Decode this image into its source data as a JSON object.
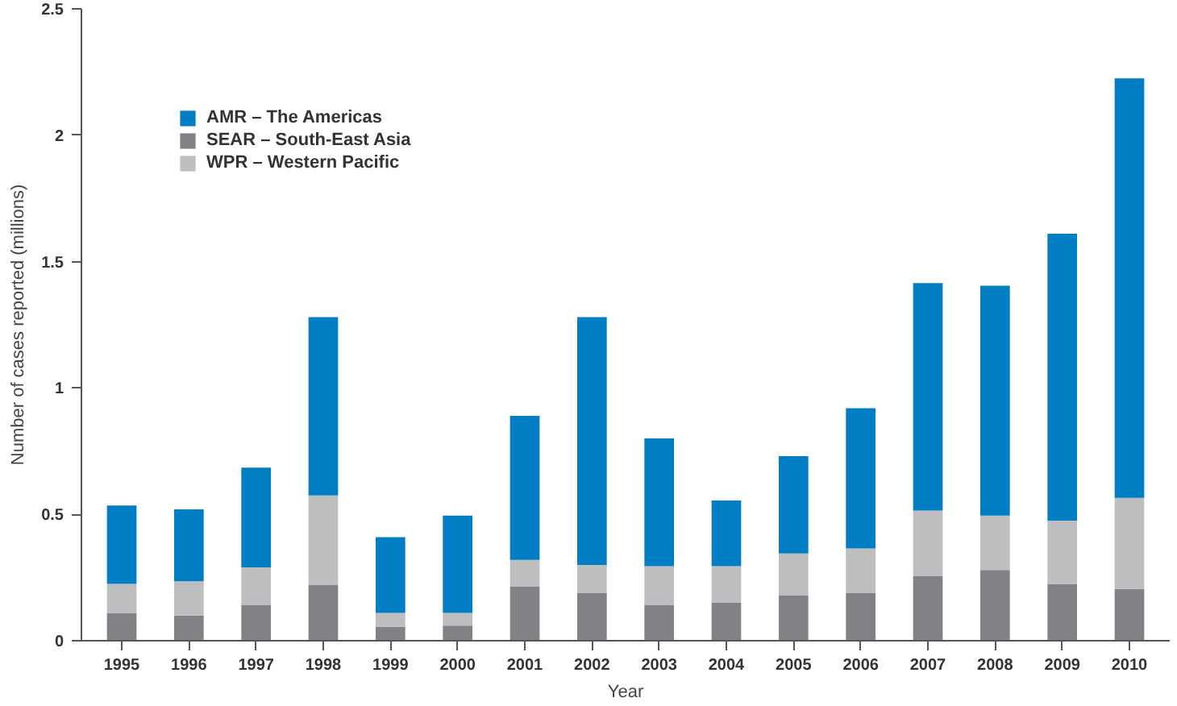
{
  "chart_data": {
    "type": "bar",
    "stacked": true,
    "xlabel": "Year",
    "ylabel": "Number of cases reported (millions)",
    "categories": [
      "1995",
      "1996",
      "1997",
      "1998",
      "1999",
      "2000",
      "2001",
      "2002",
      "2003",
      "2004",
      "2005",
      "2006",
      "2007",
      "2008",
      "2009",
      "2010"
    ],
    "series": [
      {
        "name": "SEAR – South-East Asia",
        "color": "#808285",
        "values": [
          0.11,
          0.1,
          0.14,
          0.22,
          0.055,
          0.06,
          0.215,
          0.19,
          0.14,
          0.15,
          0.18,
          0.19,
          0.255,
          0.28,
          0.225,
          0.205
        ]
      },
      {
        "name": "WPR – Western Pacific",
        "color": "#bcbec0",
        "values": [
          0.115,
          0.135,
          0.15,
          0.355,
          0.055,
          0.05,
          0.105,
          0.11,
          0.155,
          0.145,
          0.165,
          0.175,
          0.26,
          0.215,
          0.25,
          0.36
        ]
      },
      {
        "name": "AMR – The Americas",
        "color": "#007dc3",
        "values": [
          0.31,
          0.285,
          0.395,
          0.705,
          0.3,
          0.385,
          0.57,
          0.98,
          0.505,
          0.26,
          0.385,
          0.555,
          0.9,
          0.91,
          1.135,
          1.66
        ]
      }
    ],
    "ylim": [
      0,
      2.5
    ],
    "yticks": [
      0,
      0.5,
      1,
      1.5,
      2,
      2.5
    ],
    "grid": false,
    "legend": "top left"
  }
}
